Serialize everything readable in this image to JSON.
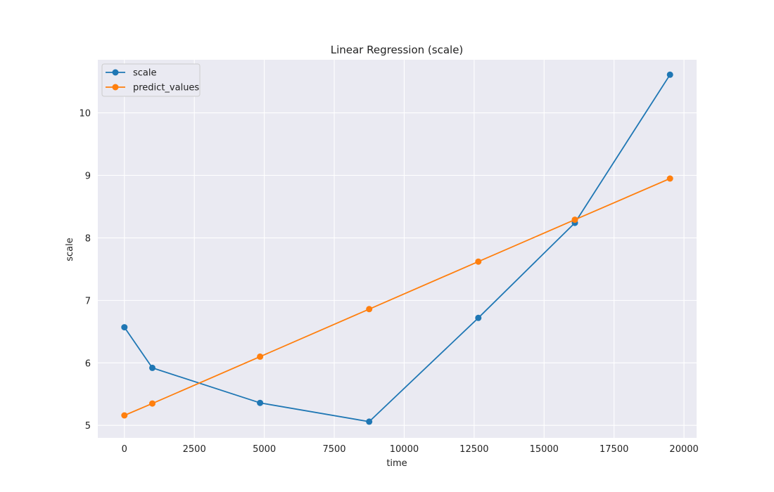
{
  "chart_data": {
    "type": "line",
    "title": "Linear Regression (scale)",
    "xlabel": "time",
    "ylabel": "scale",
    "xlim": [
      -950,
      20450
    ],
    "ylim": [
      4.8,
      10.85
    ],
    "xticks": [
      0,
      2500,
      5000,
      7500,
      10000,
      12500,
      15000,
      17500,
      20000
    ],
    "yticks": [
      5,
      6,
      7,
      8,
      9,
      10
    ],
    "grid": true,
    "legend_position": "top-left",
    "series": [
      {
        "name": "scale",
        "color": "#1f77b4",
        "marker": "circle",
        "points": [
          {
            "x": 0,
            "y": 6.57
          },
          {
            "x": 1000,
            "y": 5.92
          },
          {
            "x": 4850,
            "y": 5.36
          },
          {
            "x": 8750,
            "y": 5.06
          },
          {
            "x": 12650,
            "y": 6.72
          },
          {
            "x": 16100,
            "y": 8.24
          },
          {
            "x": 19500,
            "y": 10.61
          }
        ]
      },
      {
        "name": "predict_values",
        "color": "#ff7f0e",
        "marker": "circle",
        "points": [
          {
            "x": 0,
            "y": 5.16
          },
          {
            "x": 1000,
            "y": 5.35
          },
          {
            "x": 4850,
            "y": 6.1
          },
          {
            "x": 8750,
            "y": 6.86
          },
          {
            "x": 12650,
            "y": 7.62
          },
          {
            "x": 16100,
            "y": 8.29
          },
          {
            "x": 19500,
            "y": 8.95
          }
        ]
      }
    ],
    "colors": {
      "plot_background": "#eaeaf2",
      "grid": "#ffffff"
    }
  }
}
